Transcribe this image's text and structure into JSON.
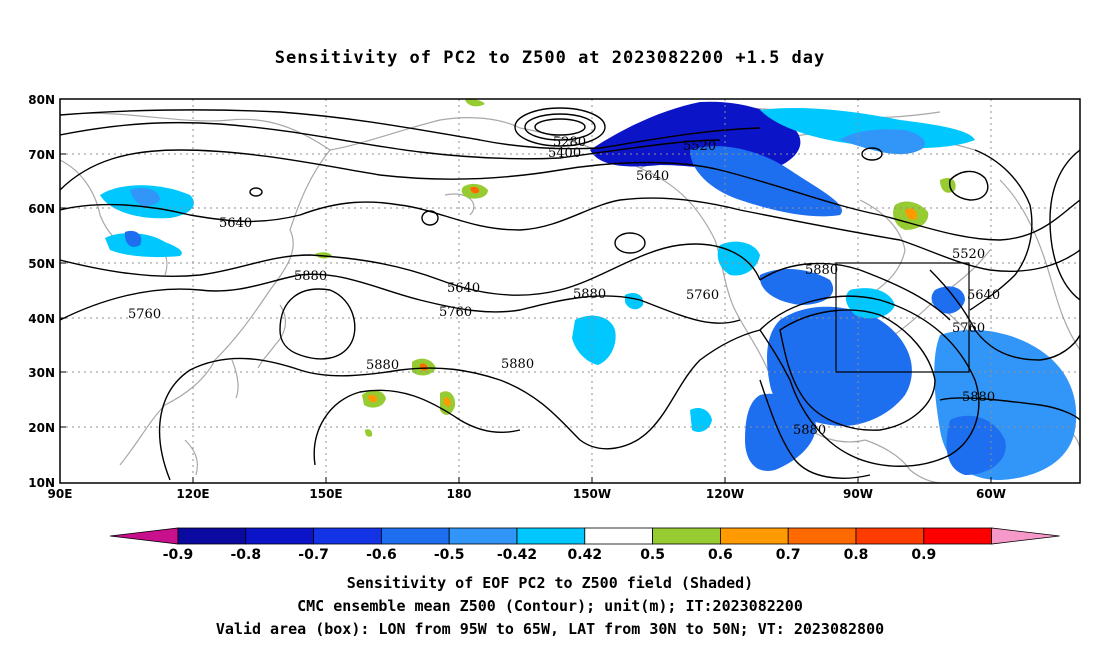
{
  "title": "Sensitivity of PC2 to Z500 at 2023082200 +1.5 day",
  "map": {
    "lon_labels": [
      "90E",
      "120E",
      "150E",
      "180",
      "150W",
      "120W",
      "90W",
      "60W"
    ],
    "lat_labels": [
      "80N",
      "70N",
      "60N",
      "50N",
      "40N",
      "30N",
      "20N",
      "10N"
    ],
    "contour_labels": [
      "5280",
      "5400",
      "5520",
      "5640",
      "5640",
      "5760",
      "5880",
      "5640",
      "5760",
      "5880",
      "5880",
      "5760",
      "5880",
      "5520",
      "5640",
      "5760",
      "5880",
      "5880",
      "5880"
    ],
    "valid_box": {
      "lon_min": "95W",
      "lon_max": "65W",
      "lat_min": "30N",
      "lat_max": "50N"
    }
  },
  "colorbar": {
    "labels": [
      "-0.9",
      "-0.8",
      "-0.7",
      "-0.6",
      "-0.5",
      "-0.42",
      "0.42",
      "0.5",
      "0.6",
      "0.7",
      "0.8",
      "0.9"
    ],
    "colors": [
      "#c8108c",
      "#0a0aa0",
      "#0c14c8",
      "#1432e6",
      "#1e6ef0",
      "#3296f8",
      "#00c8ff",
      "#ffffff",
      "#96cc32",
      "#ff9a00",
      "#ff6a00",
      "#ff3c00",
      "#ff0000",
      "#f59ac8"
    ]
  },
  "captions": {
    "line1": "Sensitivity of EOF PC2 to Z500 field (Shaded)",
    "line2": "CMC ensemble mean Z500 (Contour); unit(m); IT:2023082200",
    "line3": "Valid area (box): LON from 95W to 65W, LAT from 30N to 50N; VT: 2023082800"
  }
}
